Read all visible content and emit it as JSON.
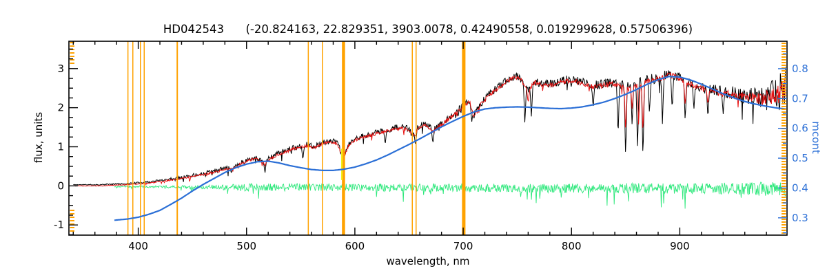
{
  "chart_data": {
    "type": "line",
    "title": "HD042543      (-20.824163, 22.829351, 3903.0078, 0.42490558, 0.019299628, 0.57506396)",
    "xlabel": "wavelength, nm",
    "ylabel": "flux, units",
    "ylabel_right": "mcont",
    "xlim": [
      336,
      999
    ],
    "ylim_left": [
      -1.26,
      3.7
    ],
    "ylim_right": [
      0.242,
      0.892
    ],
    "x_ticks": [
      400,
      500,
      600,
      700,
      800,
      900
    ],
    "x_minor_step": 20,
    "y_ticks_left": [
      -1,
      0,
      1,
      2,
      3
    ],
    "y_left_minor_step": 0.25,
    "y_ticks_right": [
      0.3,
      0.4,
      0.5,
      0.6,
      0.7,
      0.8
    ],
    "y_right_minor_step": 0.05,
    "grid": false,
    "legend": "none",
    "colors": {
      "observed": "#000000",
      "fit": "#e81010",
      "residuals": "#2ee87c",
      "continuum": "#2b6fd6",
      "masked_lines": "#ffa200",
      "yellow_marker": "#f2ef1a",
      "axis": "#000000",
      "right_axis_text": "#2b6fd6",
      "background": "#ffffff"
    },
    "series": [
      {
        "name": "observed spectrum",
        "color": "#000000",
        "axis": "left",
        "style": "noisy",
        "seed": 11,
        "x": [
          340,
          365,
          380,
          390,
          400,
          410,
          420,
          430,
          440,
          450,
          460,
          470,
          480,
          490,
          500,
          508,
          515,
          520,
          528,
          536,
          544,
          550,
          556,
          562,
          570,
          578,
          584,
          589,
          594,
          600,
          608,
          616,
          624,
          632,
          640,
          648,
          654,
          660,
          666,
          672,
          678,
          684,
          692,
          700,
          706,
          710,
          716,
          724,
          732,
          740,
          748,
          754,
          760,
          766,
          772,
          780,
          788,
          796,
          804,
          812,
          820,
          828,
          836,
          844,
          852,
          860,
          868,
          876,
          884,
          890,
          896,
          904,
          912,
          920,
          928,
          936,
          944,
          952,
          960,
          968,
          976,
          984,
          992,
          998
        ],
        "y": [
          0.03,
          0.03,
          0.05,
          0.06,
          0.08,
          0.1,
          0.14,
          0.18,
          0.22,
          0.27,
          0.32,
          0.38,
          0.45,
          0.52,
          0.65,
          0.74,
          0.62,
          0.68,
          0.82,
          0.9,
          0.98,
          1.02,
          1.06,
          1.0,
          1.1,
          1.16,
          1.1,
          0.72,
          1.05,
          1.2,
          1.28,
          1.34,
          1.4,
          1.45,
          1.5,
          1.48,
          1.32,
          1.55,
          1.58,
          1.42,
          1.55,
          1.68,
          1.85,
          2.05,
          2.18,
          1.8,
          2.1,
          2.35,
          2.52,
          2.7,
          2.82,
          2.72,
          2.45,
          2.68,
          2.62,
          2.6,
          2.66,
          2.72,
          2.7,
          2.64,
          2.56,
          2.6,
          2.65,
          2.62,
          2.55,
          2.62,
          2.7,
          2.74,
          2.8,
          2.86,
          2.82,
          2.7,
          2.6,
          2.52,
          2.46,
          2.42,
          2.38,
          2.34,
          2.3,
          2.28,
          2.26,
          2.3,
          2.4,
          2.55
        ],
        "noise_x": [
          340,
          400,
          450,
          500,
          550,
          600,
          650,
          700,
          750,
          800,
          850,
          900,
          940,
          970,
          999
        ],
        "noise_amp": [
          0.01,
          0.02,
          0.045,
          0.07,
          0.07,
          0.07,
          0.08,
          0.09,
          0.1,
          0.11,
          0.13,
          0.13,
          0.16,
          0.25,
          0.55
        ],
        "spikes": [
          [
            486,
            0.3
          ],
          [
            517,
            0.3
          ],
          [
            552,
            0.62
          ],
          [
            589,
            0.32
          ],
          [
            628,
            1.02
          ],
          [
            656,
            0.98
          ],
          [
            672,
            1.05
          ],
          [
            708,
            1.62
          ],
          [
            757,
            1.5
          ],
          [
            763,
            1.72
          ],
          [
            820,
            1.95
          ],
          [
            843,
            1.12
          ],
          [
            850,
            0.55
          ],
          [
            856,
            1.45
          ],
          [
            861,
            0.72
          ],
          [
            866,
            0.45
          ],
          [
            872,
            1.75
          ],
          [
            884,
            1.5
          ],
          [
            893,
            1.85
          ],
          [
            905,
            1.55
          ],
          [
            913,
            1.9
          ],
          [
            926,
            1.65
          ],
          [
            940,
            1.8
          ]
        ]
      },
      {
        "name": "fitted spectrum",
        "color": "#e81010",
        "axis": "left",
        "style": "noisy",
        "seed": 47,
        "derive_from": "observed spectrum",
        "y_offset": -0.03,
        "noise_scale": 0.55,
        "spikes": [
          [
            486,
            0.45
          ],
          [
            517,
            0.5
          ],
          [
            589,
            0.6
          ],
          [
            656,
            1.25
          ],
          [
            708,
            1.95
          ],
          [
            760,
            2.1
          ],
          [
            850,
            1.3
          ],
          [
            856,
            1.9
          ],
          [
            862,
            1.5
          ],
          [
            866,
            1.2
          ],
          [
            905,
            2.0
          ],
          [
            926,
            2.05
          ]
        ]
      },
      {
        "name": "residuals",
        "color": "#2ee87c",
        "axis": "left",
        "style": "noisy",
        "seed": 23,
        "x": [
          378,
          420,
          460,
          500,
          540,
          580,
          620,
          660,
          700,
          740,
          780,
          820,
          860,
          900,
          940,
          980,
          998
        ],
        "y": [
          -0.02,
          -0.02,
          -0.03,
          -0.04,
          -0.03,
          -0.04,
          -0.04,
          -0.05,
          -0.05,
          -0.05,
          -0.06,
          -0.06,
          -0.06,
          -0.07,
          -0.07,
          -0.08,
          -0.08
        ],
        "noise_x": [
          378,
          420,
          460,
          500,
          540,
          580,
          620,
          660,
          700,
          740,
          780,
          820,
          860,
          900,
          940,
          980,
          998
        ],
        "noise_amp": [
          0.015,
          0.03,
          0.05,
          0.1,
          0.09,
          0.09,
          0.1,
          0.1,
          0.11,
          0.11,
          0.12,
          0.12,
          0.13,
          0.13,
          0.15,
          0.18,
          0.2
        ]
      },
      {
        "name": "mcont continuum",
        "color": "#2b6fd6",
        "axis": "right",
        "style": "smooth",
        "x": [
          378,
          390,
          400,
          410,
          420,
          430,
          440,
          450,
          460,
          470,
          480,
          490,
          500,
          510,
          520,
          530,
          540,
          550,
          560,
          570,
          580,
          590,
          600,
          610,
          620,
          630,
          640,
          650,
          660,
          670,
          680,
          690,
          700,
          710,
          720,
          730,
          740,
          750,
          760,
          770,
          780,
          790,
          800,
          810,
          820,
          830,
          840,
          850,
          860,
          870,
          880,
          890,
          900,
          910,
          920,
          930,
          940,
          950,
          960,
          970,
          980,
          990,
          998
        ],
        "y": [
          0.292,
          0.296,
          0.302,
          0.312,
          0.325,
          0.345,
          0.366,
          0.39,
          0.412,
          0.432,
          0.452,
          0.468,
          0.48,
          0.488,
          0.49,
          0.484,
          0.475,
          0.468,
          0.462,
          0.459,
          0.459,
          0.463,
          0.47,
          0.481,
          0.494,
          0.51,
          0.528,
          0.546,
          0.565,
          0.585,
          0.605,
          0.623,
          0.64,
          0.655,
          0.665,
          0.669,
          0.671,
          0.672,
          0.671,
          0.669,
          0.667,
          0.666,
          0.668,
          0.672,
          0.679,
          0.688,
          0.7,
          0.714,
          0.73,
          0.748,
          0.763,
          0.774,
          0.772,
          0.762,
          0.748,
          0.732,
          0.716,
          0.702,
          0.69,
          0.681,
          0.674,
          0.668,
          0.665
        ]
      }
    ],
    "masked_lines_nm": [
      {
        "x": 390.5,
        "w": 1.5
      },
      {
        "x": 395.0,
        "w": 1.5
      },
      {
        "x": 402.0,
        "w": 1.5
      },
      {
        "x": 405.5,
        "w": 1.5
      },
      {
        "x": 436.0,
        "w": 2.0
      },
      {
        "x": 557.0,
        "w": 1.5
      },
      {
        "x": 570.0,
        "w": 1.5
      },
      {
        "x": 589.5,
        "w": 4.5
      },
      {
        "x": 653.0,
        "w": 1.5
      },
      {
        "x": 656.5,
        "w": 1.5
      },
      {
        "x": 700.5,
        "w": 5.0
      }
    ],
    "yellow_marker": {
      "x": 588.0,
      "y1": 0.15,
      "y2": 0.95
    }
  }
}
